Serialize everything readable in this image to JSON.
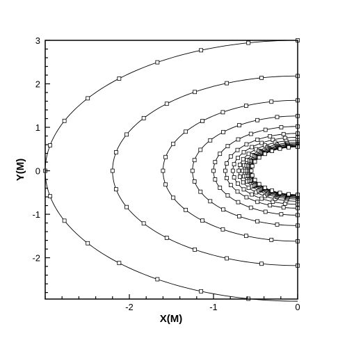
{
  "chart_data": {
    "type": "line",
    "title": "",
    "xlabel": "X(M)",
    "ylabel": "Y(M)",
    "xlim": [
      -3.0,
      0.0
    ],
    "ylim": [
      -2.95,
      3.0
    ],
    "xticks": [
      -2,
      -1,
      0
    ],
    "xtick_labels": [
      "-2",
      "-1",
      "0"
    ],
    "yticks": [
      3,
      2,
      1,
      0,
      -1,
      -2
    ],
    "ytick_labels": [
      "3",
      "2",
      "1",
      "0",
      "-1",
      "-2"
    ],
    "grid": false,
    "legend": "none",
    "line_color": "#000000",
    "marker": "open-square",
    "marker_points_per_curve": 17,
    "curves": [
      {
        "x0": -3.0,
        "r": 3.0
      },
      {
        "x0": -2.2,
        "r": 2.18
      },
      {
        "x0": -1.6,
        "r": 1.62
      },
      {
        "x0": -1.25,
        "r": 1.26
      },
      {
        "x0": -1.0,
        "r": 1.02
      },
      {
        "x0": -0.86,
        "r": 0.86
      },
      {
        "x0": -0.77,
        "r": 0.77
      },
      {
        "x0": -0.7,
        "r": 0.7
      },
      {
        "x0": -0.65,
        "r": 0.65
      },
      {
        "x0": -0.62,
        "r": 0.62
      },
      {
        "x0": -0.6,
        "r": 0.6
      },
      {
        "x0": -0.58,
        "r": 0.58
      },
      {
        "x0": -0.565,
        "r": 0.565
      },
      {
        "x0": -0.555,
        "r": 0.555
      },
      {
        "x0": -0.55,
        "r": 0.55
      }
    ]
  }
}
